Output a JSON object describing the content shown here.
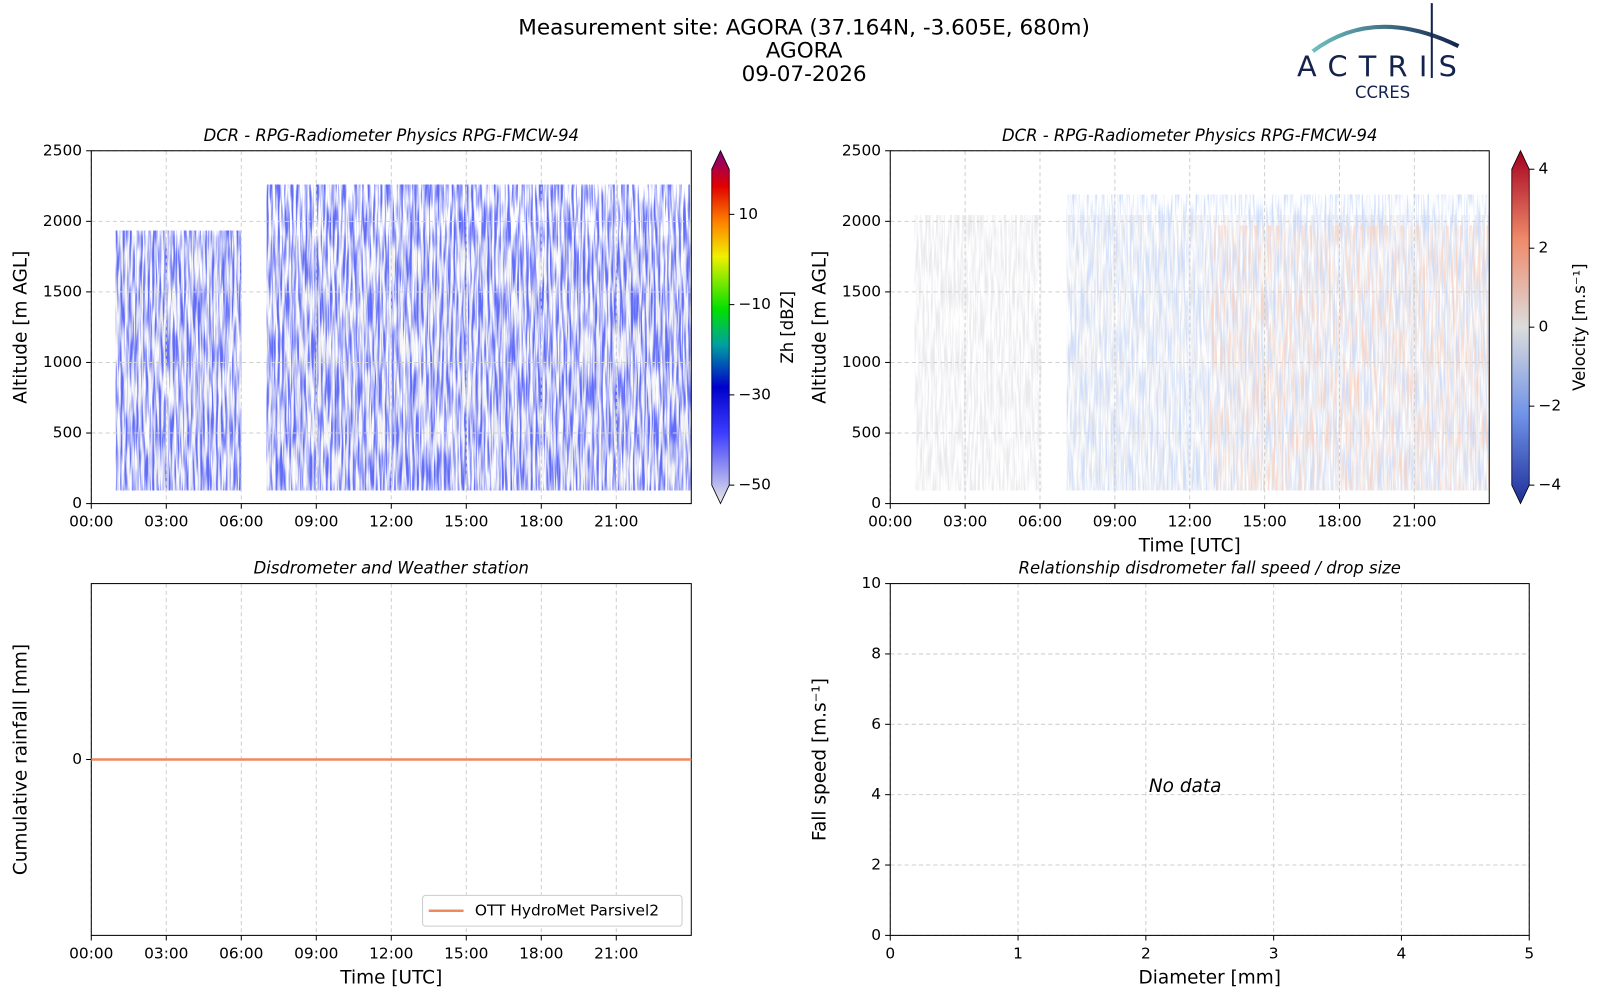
{
  "header": {
    "lines": [
      "Measurement site: AGORA (37.164N, -3.605E, 680m)",
      "AGORA",
      "09-07-2026"
    ]
  },
  "logo": {
    "name": "ACTRIS",
    "sub": "CCRES"
  },
  "chart_data": [
    {
      "type": "heatmap",
      "title": "DCR - RPG-Radiometer Physics RPG-FMCW-94",
      "ylabel": "Altitude [m AGL]",
      "xlim": [
        0,
        24
      ],
      "xticks": [
        {
          "value": 0,
          "label": "00:00"
        },
        {
          "value": 3,
          "label": "03:00"
        },
        {
          "value": 6,
          "label": "06:00"
        },
        {
          "value": 9,
          "label": "09:00"
        },
        {
          "value": 12,
          "label": "12:00"
        },
        {
          "value": 15,
          "label": "15:00"
        },
        {
          "value": 18,
          "label": "18:00"
        },
        {
          "value": 21,
          "label": "21:00"
        }
      ],
      "ylim": [
        0,
        2500
      ],
      "yticks": [
        0,
        500,
        1000,
        1500,
        2000,
        2500
      ],
      "grid": true,
      "colorbar": {
        "label": "Zh [dBZ]",
        "lim": [
          -50,
          20
        ],
        "ticks": [
          {
            "value": -50,
            "label": "−50"
          },
          {
            "value": -30,
            "label": "−30"
          },
          {
            "value": -10,
            "label": "−10"
          },
          10
        ]
      }
    },
    {
      "type": "heatmap",
      "title": "DCR - RPG-Radiometer Physics RPG-FMCW-94",
      "ylabel": "Altitude [m AGL]",
      "xlabel": "Time [UTC]",
      "xlim": [
        0,
        24
      ],
      "xticks": [
        {
          "value": 0,
          "label": "00:00"
        },
        {
          "value": 3,
          "label": "03:00"
        },
        {
          "value": 6,
          "label": "06:00"
        },
        {
          "value": 9,
          "label": "09:00"
        },
        {
          "value": 12,
          "label": "12:00"
        },
        {
          "value": 15,
          "label": "15:00"
        },
        {
          "value": 18,
          "label": "18:00"
        },
        {
          "value": 21,
          "label": "21:00"
        }
      ],
      "ylim": [
        0,
        2500
      ],
      "yticks": [
        0,
        500,
        1000,
        1500,
        2000,
        2500
      ],
      "grid": true,
      "colorbar": {
        "label": "Velocity [m.s⁻¹]",
        "lim": [
          -4,
          4
        ],
        "ticks": [
          {
            "value": -4,
            "label": "−4"
          },
          {
            "value": -2,
            "label": "−2"
          },
          0,
          2,
          4
        ]
      }
    },
    {
      "type": "line",
      "title": "Disdrometer and Weather station",
      "ylabel": "Cumulative rainfall [mm]",
      "xlabel": "Time [UTC]",
      "x": [
        0,
        24
      ],
      "series": [
        {
          "name": "OTT HydroMet Parsivel2",
          "color": "#ef8a5e",
          "values": [
            0,
            0
          ]
        }
      ],
      "legend": "lower right",
      "xlim": [
        0,
        24
      ],
      "xticks": [
        {
          "value": 0,
          "label": "00:00"
        },
        {
          "value": 3,
          "label": "03:00"
        },
        {
          "value": 6,
          "label": "06:00"
        },
        {
          "value": 9,
          "label": "09:00"
        },
        {
          "value": 12,
          "label": "12:00"
        },
        {
          "value": 15,
          "label": "15:00"
        },
        {
          "value": 18,
          "label": "18:00"
        },
        {
          "value": 21,
          "label": "21:00"
        }
      ],
      "ylim": [
        -1,
        1
      ],
      "yticks": [
        0
      ],
      "grid": true
    },
    {
      "type": "scatter",
      "title": "Relationship disdrometer fall speed / drop size",
      "ylabel": "Fall speed [m.s⁻¹]",
      "xlabel": "Diameter [mm]",
      "annotation": "No data",
      "xlim": [
        0,
        5
      ],
      "xticks": [
        0,
        1,
        2,
        3,
        4,
        5
      ],
      "ylim": [
        0,
        10
      ],
      "yticks": [
        0,
        2,
        4,
        6,
        8,
        10
      ],
      "grid": true
    }
  ]
}
